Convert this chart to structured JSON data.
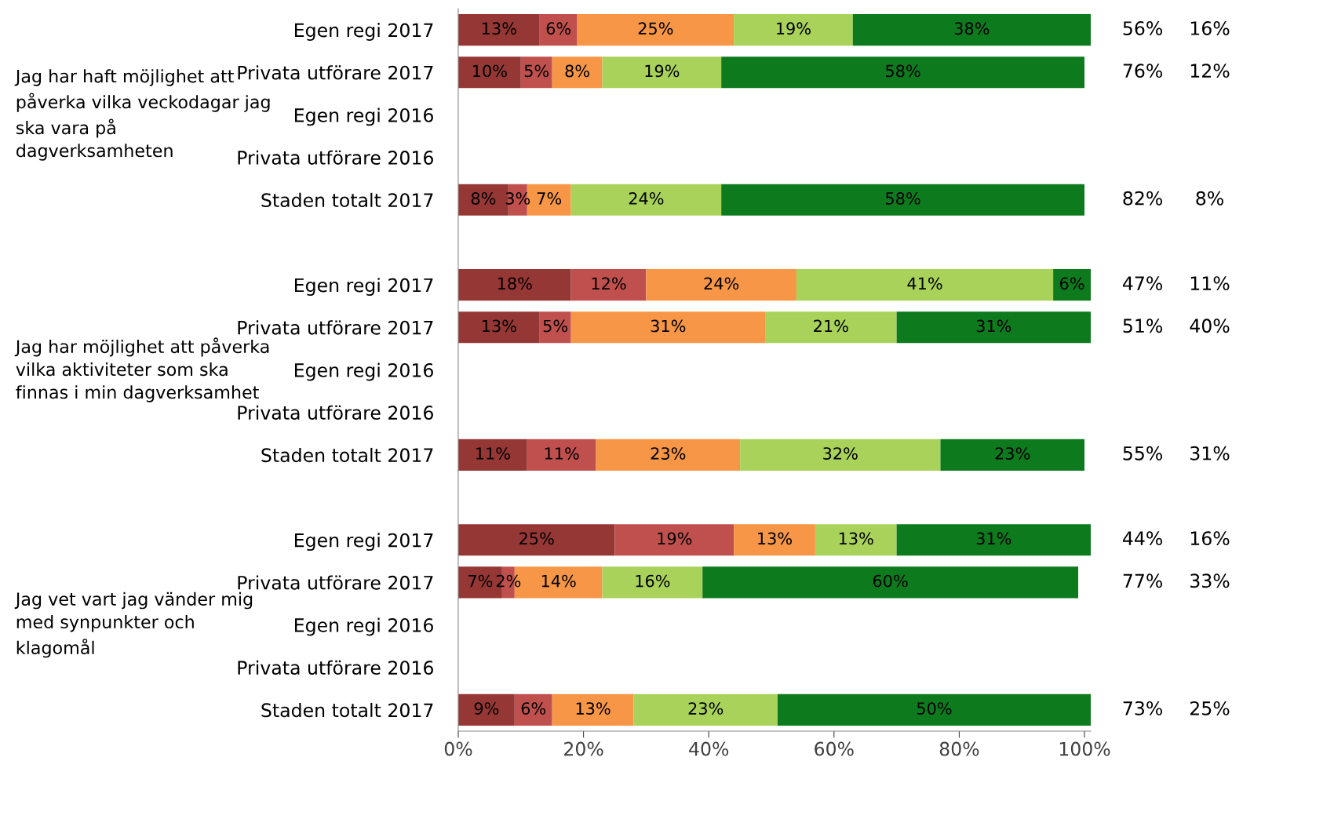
{
  "chart_data": {
    "type": "bar",
    "orientation": "horizontal",
    "stacked": true,
    "grid": false,
    "legend": false,
    "categories": [
      "Egen regi 2017",
      "Privata utförare 2017",
      "Egen regi 2016",
      "Privata utförare 2016",
      "Staden totalt 2017",
      null,
      "Egen regi 2017",
      "Privata utförare 2017",
      "Egen regi 2016",
      "Privata utförare 2016",
      "Staden totalt 2017",
      null,
      "Egen regi 2017",
      "Privata utförare 2017",
      "Egen regi 2016",
      "Privata utförare 2016",
      "Staden totalt 2017"
    ],
    "series": [
      {
        "color": "#953735",
        "values": [
          13,
          10,
          null,
          null,
          8,
          null,
          18,
          13,
          null,
          null,
          11,
          null,
          25,
          7,
          null,
          null,
          9
        ],
        "value_labels": [
          "13%",
          "10%",
          null,
          null,
          "8%",
          null,
          "18%",
          "13%",
          null,
          null,
          "11%",
          null,
          "25%",
          "7%",
          null,
          null,
          "9%"
        ]
      },
      {
        "color": "#c0504d",
        "values": [
          6,
          5,
          null,
          null,
          3,
          null,
          12,
          5,
          null,
          null,
          11,
          null,
          19,
          2,
          null,
          null,
          6
        ],
        "value_labels": [
          "6%",
          "5%",
          null,
          null,
          "3%",
          null,
          "12%",
          "5%",
          null,
          null,
          "11%",
          null,
          "19%",
          "2%",
          null,
          null,
          "6%"
        ]
      },
      {
        "color": "#f79646",
        "values": [
          25,
          8,
          null,
          null,
          7,
          null,
          24,
          31,
          null,
          null,
          23,
          null,
          13,
          14,
          null,
          null,
          13
        ],
        "value_labels": [
          "25%",
          "8%",
          null,
          null,
          "7%",
          null,
          "24%",
          "31%",
          null,
          null,
          "23%",
          null,
          "13%",
          "14%",
          null,
          null,
          "13%"
        ]
      },
      {
        "color": "#a9d25a",
        "values": [
          19,
          19,
          null,
          null,
          24,
          null,
          41,
          21,
          null,
          null,
          32,
          null,
          13,
          16,
          null,
          null,
          23
        ],
        "value_labels": [
          "19%",
          "19%",
          null,
          null,
          "24%",
          null,
          "41%",
          "21%",
          null,
          null,
          "32%",
          null,
          "13%",
          "16%",
          null,
          null,
          "23%"
        ]
      },
      {
        "color": "#0e7a1e",
        "values": [
          38,
          58,
          null,
          null,
          58,
          null,
          6,
          31,
          null,
          null,
          23,
          null,
          31,
          60,
          null,
          null,
          50
        ],
        "value_labels": [
          "38%",
          "58%",
          null,
          null,
          "58%",
          null,
          "6%",
          "31%",
          null,
          null,
          "23%",
          null,
          "31%",
          "60%",
          null,
          null,
          "50%"
        ]
      }
    ],
    "xlim": [
      0,
      101
    ],
    "xticks": [
      {
        "value": 0,
        "label": "0%"
      },
      {
        "value": 20,
        "label": "20%"
      },
      {
        "value": 40,
        "label": "40%"
      },
      {
        "value": 60,
        "label": "60%"
      },
      {
        "value": 80,
        "label": "80%"
      },
      {
        "value": 100,
        "label": "100%"
      }
    ],
    "annotations": [
      "Jag har haft möjlighet att påverka vilka veckodagar jag ska vara på dagverksamheten",
      "Jag har möjlighet att påverka vilka aktiviteter som ska finnas i min dagverksamhet",
      "Jag vet vart jag vänder mig med synpunkter och klagomål",
      "56%",
      "16%",
      "76%",
      "12%",
      "82%",
      "8%",
      "47%",
      "11%",
      "51%",
      "40%",
      "55%",
      "31%",
      "44%",
      "16%",
      "77%",
      "33%",
      "73%",
      "25%"
    ]
  }
}
